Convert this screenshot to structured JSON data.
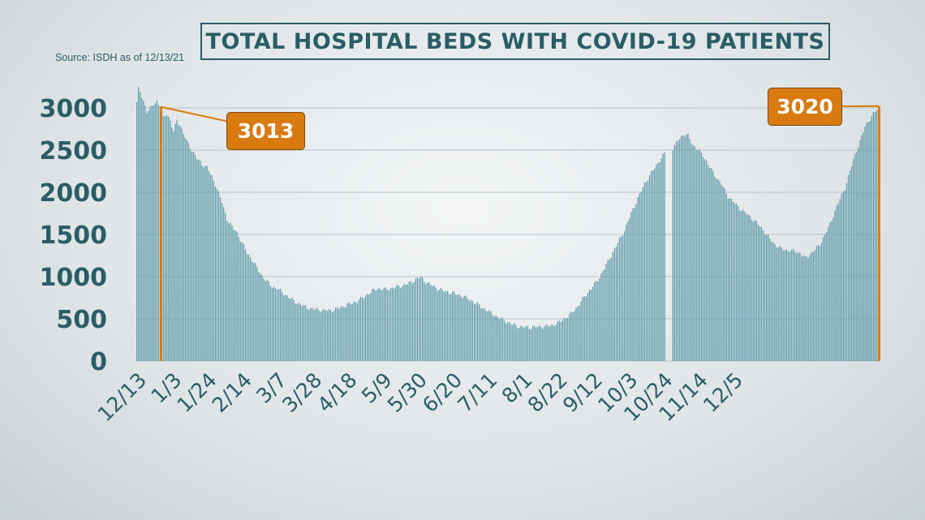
{
  "title": "TOTAL HOSPITAL BEDS WITH COVID-19 PATIENTS",
  "source": "Source: ISDH as of 12/13/21",
  "colors": {
    "bar": "#5e9aa8",
    "highlight": "#d97a10",
    "axis_text": "#2b5d66",
    "grid": "#b9c3c8"
  },
  "chart_data": {
    "type": "bar",
    "title": "TOTAL HOSPITAL BEDS WITH COVID-19 PATIENTS",
    "xlabel": "",
    "ylabel": "",
    "ylim": [
      0,
      3000
    ],
    "yticks": [
      0,
      500,
      1000,
      1500,
      2000,
      2500,
      3000
    ],
    "xticks": [
      "12/13",
      "1/3",
      "1/24",
      "2/14",
      "3/7",
      "3/28",
      "4/18",
      "5/9",
      "5/30",
      "6/20",
      "7/11",
      "8/1",
      "8/22",
      "9/12",
      "10/3",
      "10/24",
      "11/14",
      "12/5"
    ],
    "grid": true,
    "note": "Daily bars from 12/13/20 to 12/13/21; tick labels every 21 days",
    "anchors": [
      [
        0,
        3070
      ],
      [
        1,
        3220
      ],
      [
        2,
        3180
      ],
      [
        4,
        3080
      ],
      [
        6,
        2960
      ],
      [
        8,
        2990
      ],
      [
        10,
        3040
      ],
      [
        12,
        3080
      ],
      [
        14,
        3013
      ],
      [
        16,
        2880
      ],
      [
        18,
        2930
      ],
      [
        20,
        2850
      ],
      [
        22,
        2720
      ],
      [
        24,
        2850
      ],
      [
        26,
        2790
      ],
      [
        28,
        2700
      ],
      [
        30,
        2600
      ],
      [
        33,
        2500
      ],
      [
        36,
        2400
      ],
      [
        39,
        2330
      ],
      [
        42,
        2300
      ],
      [
        45,
        2180
      ],
      [
        48,
        2050
      ],
      [
        51,
        1880
      ],
      [
        54,
        1680
      ],
      [
        57,
        1590
      ],
      [
        60,
        1520
      ],
      [
        63,
        1400
      ],
      [
        66,
        1280
      ],
      [
        69,
        1200
      ],
      [
        72,
        1100
      ],
      [
        75,
        1010
      ],
      [
        78,
        940
      ],
      [
        81,
        880
      ],
      [
        84,
        860
      ],
      [
        88,
        800
      ],
      [
        92,
        740
      ],
      [
        96,
        690
      ],
      [
        100,
        650
      ],
      [
        104,
        620
      ],
      [
        108,
        610
      ],
      [
        112,
        600
      ],
      [
        116,
        600
      ],
      [
        120,
        620
      ],
      [
        124,
        650
      ],
      [
        128,
        680
      ],
      [
        132,
        710
      ],
      [
        136,
        760
      ],
      [
        140,
        820
      ],
      [
        144,
        860
      ],
      [
        148,
        850
      ],
      [
        152,
        860
      ],
      [
        156,
        880
      ],
      [
        160,
        900
      ],
      [
        164,
        930
      ],
      [
        168,
        980
      ],
      [
        170,
        1000
      ],
      [
        172,
        950
      ],
      [
        176,
        900
      ],
      [
        180,
        860
      ],
      [
        184,
        830
      ],
      [
        188,
        810
      ],
      [
        192,
        790
      ],
      [
        196,
        760
      ],
      [
        200,
        720
      ],
      [
        204,
        670
      ],
      [
        208,
        620
      ],
      [
        212,
        570
      ],
      [
        216,
        520
      ],
      [
        220,
        480
      ],
      [
        224,
        440
      ],
      [
        228,
        410
      ],
      [
        232,
        400
      ],
      [
        236,
        400
      ],
      [
        240,
        405
      ],
      [
        244,
        410
      ],
      [
        248,
        420
      ],
      [
        252,
        450
      ],
      [
        256,
        500
      ],
      [
        260,
        560
      ],
      [
        264,
        650
      ],
      [
        268,
        760
      ],
      [
        272,
        860
      ],
      [
        276,
        960
      ],
      [
        280,
        1100
      ],
      [
        284,
        1250
      ],
      [
        288,
        1400
      ],
      [
        292,
        1550
      ],
      [
        296,
        1750
      ],
      [
        300,
        1930
      ],
      [
        304,
        2100
      ],
      [
        308,
        2230
      ],
      [
        312,
        2350
      ],
      [
        316,
        2460
      ],
      [
        318,
        0
      ],
      [
        319,
        0
      ],
      [
        320,
        0
      ],
      [
        321,
        2500
      ],
      [
        324,
        2620
      ],
      [
        327,
        2680
      ],
      [
        330,
        2670
      ],
      [
        333,
        2560
      ],
      [
        336,
        2500
      ],
      [
        339,
        2440
      ],
      [
        342,
        2330
      ],
      [
        346,
        2200
      ],
      [
        350,
        2100
      ],
      [
        354,
        1950
      ],
      [
        358,
        1870
      ],
      [
        362,
        1790
      ],
      [
        366,
        1730
      ],
      [
        370,
        1660
      ],
      [
        374,
        1580
      ],
      [
        378,
        1470
      ],
      [
        382,
        1380
      ],
      [
        386,
        1330
      ],
      [
        390,
        1310
      ],
      [
        394,
        1300
      ],
      [
        397,
        1280
      ],
      [
        400,
        1220
      ],
      [
        403,
        1260
      ],
      [
        406,
        1320
      ],
      [
        409,
        1380
      ],
      [
        412,
        1500
      ],
      [
        415,
        1620
      ],
      [
        418,
        1780
      ],
      [
        421,
        1920
      ],
      [
        424,
        2050
      ],
      [
        427,
        2250
      ],
      [
        430,
        2450
      ],
      [
        433,
        2600
      ],
      [
        436,
        2780
      ],
      [
        439,
        2870
      ],
      [
        442,
        2950
      ],
      [
        444,
        3020
      ]
    ],
    "highlights": [
      {
        "index": 14,
        "label": "3013",
        "value": 3013
      },
      {
        "index": 444,
        "label": "3020",
        "value": 3020
      }
    ]
  }
}
